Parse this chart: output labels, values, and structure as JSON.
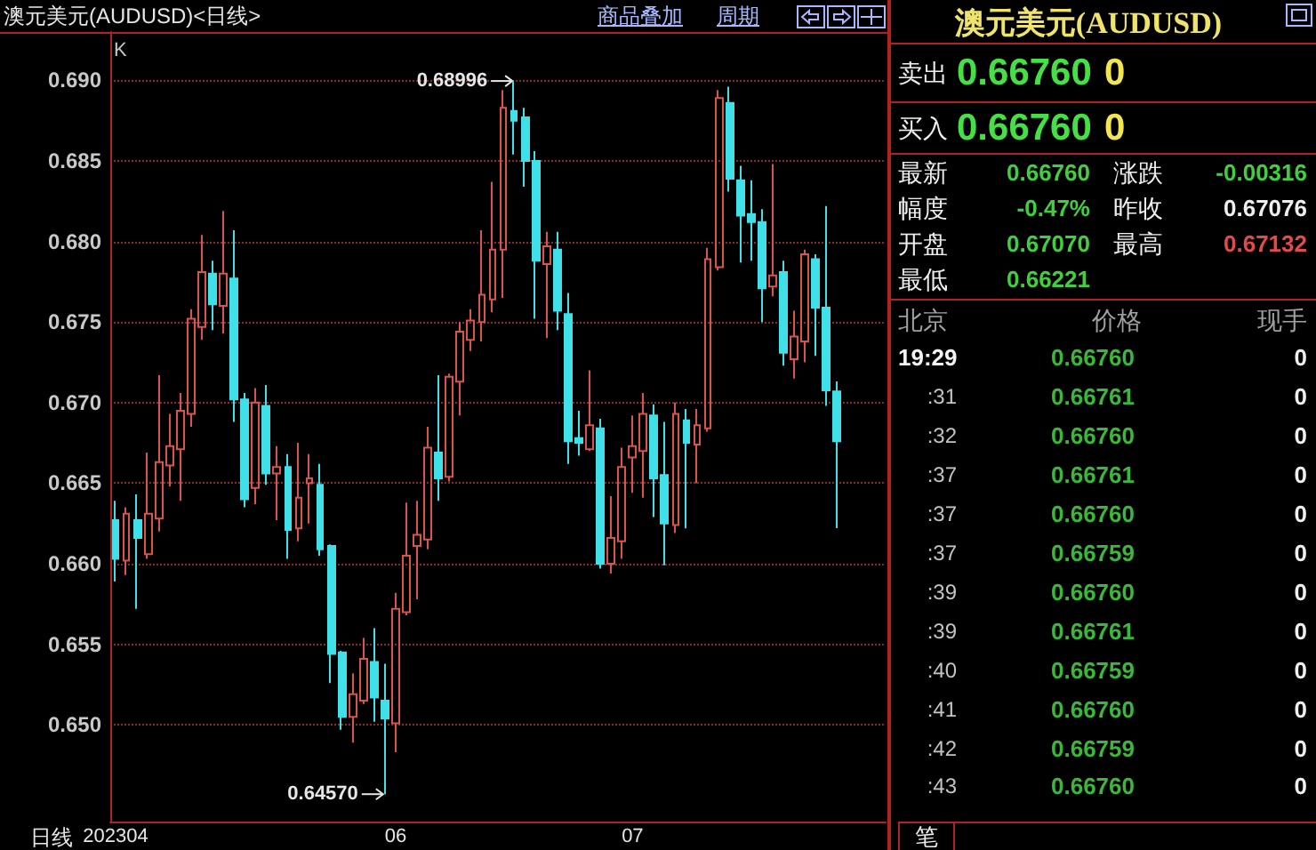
{
  "chart_data": [
    {
      "type": "candlestick",
      "title": "澳元美元(AUDUSD)<日线>",
      "xlabel": "日线",
      "categories": [
        "202304",
        null,
        null,
        null,
        null,
        null,
        null,
        null,
        null,
        null,
        null,
        null,
        null,
        null,
        null,
        null,
        null,
        null,
        null,
        null,
        null,
        null,
        null,
        null,
        null,
        null,
        "06",
        null,
        null,
        null,
        null,
        null,
        null,
        null,
        null,
        null,
        null,
        null,
        null,
        null,
        null,
        null,
        null,
        null,
        null,
        null,
        null,
        null,
        "07",
        null,
        null,
        null,
        null,
        null,
        null,
        null,
        null,
        null,
        null,
        null,
        null,
        null,
        null,
        null,
        null,
        null,
        null,
        null
      ],
      "ohlc": [
        [
          0.6627,
          0.6639,
          0.6589,
          0.6603
        ],
        [
          0.6602,
          0.6635,
          0.6593,
          0.6631
        ],
        [
          0.6627,
          0.6643,
          0.6572,
          0.6616
        ],
        [
          0.6606,
          0.6669,
          0.6603,
          0.6631
        ],
        [
          0.6628,
          0.6717,
          0.662,
          0.6663
        ],
        [
          0.6661,
          0.6693,
          0.6648,
          0.6673
        ],
        [
          0.6671,
          0.6706,
          0.6639,
          0.6695
        ],
        [
          0.6693,
          0.6758,
          0.6685,
          0.6752
        ],
        [
          0.6747,
          0.6804,
          0.6739,
          0.6781
        ],
        [
          0.678,
          0.6788,
          0.6745,
          0.6761
        ],
        [
          0.676,
          0.6819,
          0.6743,
          0.678
        ],
        [
          0.6777,
          0.6807,
          0.6688,
          0.6702
        ],
        [
          0.6702,
          0.6706,
          0.6635,
          0.664
        ],
        [
          0.6647,
          0.6709,
          0.6637,
          0.67
        ],
        [
          0.6698,
          0.6711,
          0.6649,
          0.6656
        ],
        [
          0.6656,
          0.6673,
          0.6627,
          0.666
        ],
        [
          0.666,
          0.6668,
          0.6603,
          0.6621
        ],
        [
          0.6622,
          0.6675,
          0.6614,
          0.6641
        ],
        [
          0.665,
          0.6668,
          0.6625,
          0.6653
        ],
        [
          0.6649,
          0.6662,
          0.6605,
          0.6609
        ],
        [
          0.6611,
          0.6612,
          0.6526,
          0.6544
        ],
        [
          0.6545,
          0.6546,
          0.6497,
          0.6505
        ],
        [
          0.6505,
          0.6532,
          0.6489,
          0.6519
        ],
        [
          0.6515,
          0.6554,
          0.6513,
          0.6541
        ],
        [
          0.6539,
          0.656,
          0.6502,
          0.6517
        ],
        [
          0.6515,
          0.6538,
          0.6457,
          0.6504
        ],
        [
          0.6501,
          0.6582,
          0.6483,
          0.6572
        ],
        [
          0.657,
          0.6638,
          0.6568,
          0.6605
        ],
        [
          0.6611,
          0.6639,
          0.6578,
          0.6618
        ],
        [
          0.6615,
          0.6685,
          0.6609,
          0.6672
        ],
        [
          0.6669,
          0.6717,
          0.6639,
          0.6653
        ],
        [
          0.6654,
          0.6718,
          0.6651,
          0.6716
        ],
        [
          0.6713,
          0.675,
          0.6692,
          0.6744
        ],
        [
          0.6739,
          0.6758,
          0.6732,
          0.6751
        ],
        [
          0.675,
          0.6807,
          0.6738,
          0.6767
        ],
        [
          0.6764,
          0.6837,
          0.6756,
          0.6795
        ],
        [
          0.6795,
          0.6894,
          0.6765,
          0.6883
        ],
        [
          0.6881,
          0.68996,
          0.6854,
          0.6875
        ],
        [
          0.6877,
          0.6883,
          0.6834,
          0.685
        ],
        [
          0.685,
          0.6856,
          0.6752,
          0.6788
        ],
        [
          0.6786,
          0.6806,
          0.674,
          0.6797
        ],
        [
          0.6795,
          0.6806,
          0.6745,
          0.6757
        ],
        [
          0.6755,
          0.6768,
          0.6662,
          0.6676
        ],
        [
          0.6678,
          0.6695,
          0.6667,
          0.6675
        ],
        [
          0.6671,
          0.672,
          0.667,
          0.6686
        ],
        [
          0.6684,
          0.669,
          0.6597,
          0.66
        ],
        [
          0.66,
          0.6642,
          0.6594,
          0.6616
        ],
        [
          0.6614,
          0.6672,
          0.6603,
          0.666
        ],
        [
          0.6666,
          0.6692,
          0.6644,
          0.6673
        ],
        [
          0.667,
          0.6706,
          0.6641,
          0.6693
        ],
        [
          0.6692,
          0.6699,
          0.6629,
          0.6653
        ],
        [
          0.6655,
          0.6688,
          0.6599,
          0.6625
        ],
        [
          0.6624,
          0.67,
          0.6619,
          0.6693
        ],
        [
          0.6689,
          0.6696,
          0.6622,
          0.6675
        ],
        [
          0.6674,
          0.6696,
          0.665,
          0.6686
        ],
        [
          0.6684,
          0.6796,
          0.6682,
          0.6789
        ],
        [
          0.6784,
          0.6894,
          0.6782,
          0.6889
        ],
        [
          0.6886,
          0.6896,
          0.6831,
          0.6839
        ],
        [
          0.6838,
          0.6847,
          0.6787,
          0.6816
        ],
        [
          0.6817,
          0.6838,
          0.6788,
          0.6812
        ],
        [
          0.6812,
          0.682,
          0.675,
          0.6771
        ],
        [
          0.6772,
          0.6848,
          0.6766,
          0.6779
        ],
        [
          0.6781,
          0.6788,
          0.6723,
          0.6731
        ],
        [
          0.6727,
          0.6757,
          0.6715,
          0.6741
        ],
        [
          0.6738,
          0.6795,
          0.6725,
          0.6792
        ],
        [
          0.6789,
          0.6792,
          0.6729,
          0.6759
        ],
        [
          0.6759,
          0.6822,
          0.6698,
          0.67076
        ],
        [
          0.6707,
          0.67132,
          0.66221,
          0.6676
        ]
      ],
      "colors": [
        "#3fe0e8",
        "#d9534f",
        "#3fe0e8",
        "#d9534f",
        "#d9534f",
        "#d9534f",
        "#d9534f",
        "#d9534f",
        "#d9534f",
        "#3fe0e8",
        "#d9534f",
        "#3fe0e8",
        "#3fe0e8",
        "#d9534f",
        "#3fe0e8",
        "#d9534f",
        "#3fe0e8",
        "#d9534f",
        "#d9534f",
        "#3fe0e8",
        "#3fe0e8",
        "#3fe0e8",
        "#d9534f",
        "#d9534f",
        "#3fe0e8",
        "#3fe0e8",
        "#d9534f",
        "#d9534f",
        "#d9534f",
        "#d9534f",
        "#3fe0e8",
        "#d9534f",
        "#d9534f",
        "#d9534f",
        "#d9534f",
        "#d9534f",
        "#d9534f",
        "#3fe0e8",
        "#3fe0e8",
        "#3fe0e8",
        "#d9534f",
        "#3fe0e8",
        "#3fe0e8",
        "#3fe0e8",
        "#d9534f",
        "#3fe0e8",
        "#d9534f",
        "#d9534f",
        "#d9534f",
        "#d9534f",
        "#3fe0e8",
        "#3fe0e8",
        "#d9534f",
        "#3fe0e8",
        "#d9534f",
        "#d9534f",
        "#d9534f",
        "#3fe0e8",
        "#3fe0e8",
        "#3fe0e8",
        "#3fe0e8",
        "#d9534f",
        "#3fe0e8",
        "#d9534f",
        "#d9534f",
        "#3fe0e8",
        "#3fe0e8",
        "#3fe0e8"
      ],
      "ylim": [
        0.644,
        0.693
      ],
      "yticks": [
        {
          "value": 0.65,
          "label": "0.650"
        },
        {
          "value": 0.655,
          "label": "0.655"
        },
        {
          "value": 0.66,
          "label": "0.660"
        },
        {
          "value": 0.665,
          "label": "0.665"
        },
        {
          "value": 0.67,
          "label": "0.670"
        },
        {
          "value": 0.675,
          "label": "0.675"
        },
        {
          "value": 0.68,
          "label": "0.680"
        },
        {
          "value": 0.685,
          "label": "0.685"
        },
        {
          "value": 0.69,
          "label": "0.690"
        }
      ],
      "grid": "y",
      "annotations": [
        "K",
        "0.68996",
        "0.64570",
        "商品叠加",
        "周期"
      ]
    },
    {
      "type": "other",
      "title": "澳元美元(AUDUSD)",
      "annotations": [
        "卖出",
        "0.66760",
        "0",
        "买入",
        "0.66760",
        "0",
        "最新",
        "0.66760",
        "涨跌",
        "-0.00316",
        "幅度",
        "-0.47%",
        "昨收",
        "0.67076",
        "开盘",
        "0.67070",
        "最高",
        "0.67132",
        "最低",
        "0.66221",
        "北京",
        "价格",
        "现手",
        "19:29",
        "0.66760",
        "0",
        ":31",
        "0.66761",
        "0",
        ":32",
        "0.66760",
        "0",
        ":37",
        "0.66761",
        "0",
        ":37",
        "0.66760",
        "0",
        ":37",
        "0.66759",
        "0",
        ":39",
        "0.66760",
        "0",
        ":39",
        "0.66761",
        "0",
        ":40",
        "0.66759",
        "0",
        ":41",
        "0.66760",
        "0",
        ":42",
        "0.66759",
        "0",
        ":43",
        "0.66760",
        "0",
        "笔"
      ]
    }
  ]
}
